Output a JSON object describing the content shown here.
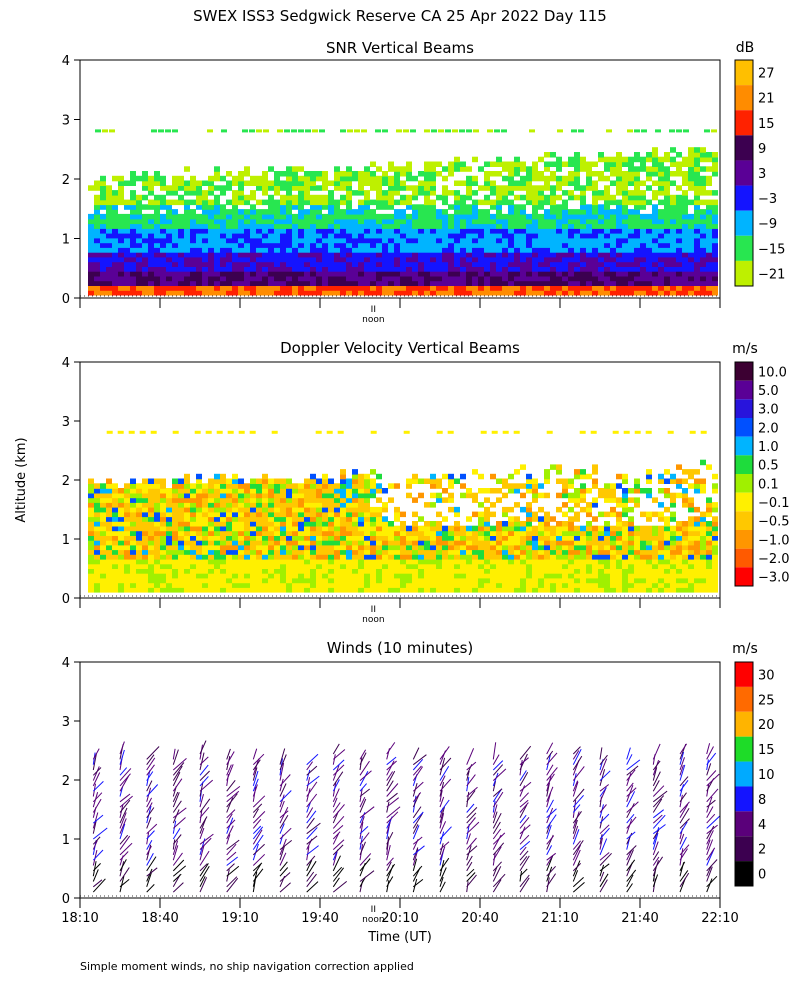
{
  "figure_title": "SWEX ISS3 Sedgwick Reserve CA  25 Apr 2022 Day 115",
  "ylabel": "Altitude (km)",
  "xlabel": "Time (UT)",
  "footnote": "Simple moment winds, no ship navigation correction applied",
  "noon_label": "noon",
  "noon_marker": "II",
  "chart_data": [
    {
      "type": "heatmap",
      "title": "SNR Vertical Beams",
      "units": "dB",
      "y_ticks": [
        "0",
        "1",
        "2",
        "3",
        "4"
      ],
      "ylim": [
        0,
        4
      ],
      "xlim_minutes_utc": [
        1090,
        1330
      ],
      "colorbar": {
        "labels": [
          "27",
          "21",
          "15",
          "9",
          "3",
          "−3",
          "−9",
          "−15",
          "−21"
        ],
        "colors": [
          "#ffbf00",
          "#ff8c00",
          "#ff2200",
          "#3c0050",
          "#5a0096",
          "#1414ff",
          "#00b4ff",
          "#28e650",
          "#bef000"
        ]
      }
    },
    {
      "type": "heatmap",
      "title": "Doppler Velocity Vertical Beams",
      "units": "m/s",
      "y_ticks": [
        "0",
        "1",
        "2",
        "3",
        "4"
      ],
      "ylim": [
        0,
        4
      ],
      "xlim_minutes_utc": [
        1090,
        1330
      ],
      "colorbar": {
        "labels": [
          "10.0",
          "5.0",
          "3.0",
          "2.0",
          "1.0",
          "0.5",
          "0.1",
          "−0.1",
          "−0.5",
          "−1.0",
          "−2.0",
          "−3.0"
        ],
        "colors": [
          "#3c0032",
          "#5a0096",
          "#2814dc",
          "#0050ff",
          "#00b4ff",
          "#1edc3c",
          "#a0f000",
          "#fff000",
          "#ffc800",
          "#ff9600",
          "#ff5a00",
          "#ff0000"
        ]
      }
    },
    {
      "type": "wind_barbs",
      "title": "Winds (10 minutes)",
      "units": "m/s",
      "y_ticks": [
        "0",
        "1",
        "2",
        "3",
        "4"
      ],
      "ylim": [
        0,
        4
      ],
      "xlim_minutes_utc": [
        1090,
        1330
      ],
      "x_ticks": [
        "18:10",
        "18:40",
        "19:10",
        "19:40",
        "20:10",
        "20:40",
        "21:10",
        "21:40",
        "22:10"
      ],
      "colorbar": {
        "labels": [
          "30",
          "25",
          "20",
          "15",
          "10",
          "8",
          "4",
          "2",
          "0"
        ],
        "colors": [
          "#ff0000",
          "#ff6a00",
          "#ffb400",
          "#1edc28",
          "#00aaff",
          "#1414ff",
          "#5a007a",
          "#3c0050",
          "#000000"
        ]
      }
    }
  ]
}
